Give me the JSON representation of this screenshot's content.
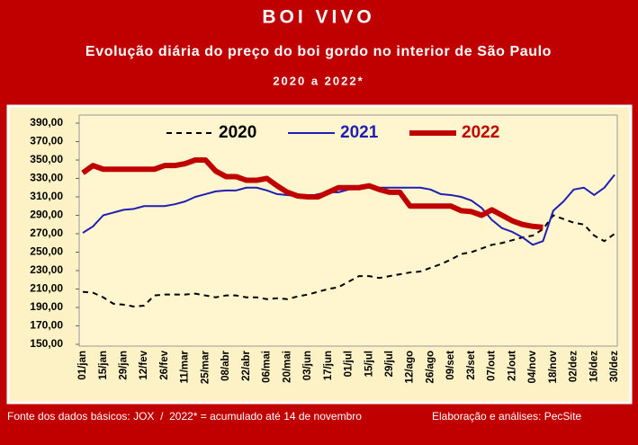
{
  "chart_data": {
    "type": "line",
    "title": "BOI VIVO",
    "subtitle": "Evolução diária do preço do boi gordo no interior de São Paulo",
    "period": "2020 a 2022*",
    "source": "Fonte dos dados básicos: JOX  /  2022* = acumulado até 14 de novembro",
    "credit": "Elaboração e análises: PecSite",
    "categories": [
      "01/jan",
      null,
      "15/jan",
      null,
      "29/jan",
      null,
      "12/fev",
      null,
      "26/fev",
      null,
      "11/mar",
      null,
      "25/mar",
      null,
      "08/abr",
      null,
      "22/abr",
      null,
      "06/mai",
      null,
      "20/mai",
      null,
      "03/jun",
      null,
      "17/jun",
      null,
      "01/jul",
      null,
      "15/jul",
      null,
      "29/jul",
      null,
      "12/ago",
      null,
      "26/ago",
      null,
      "09/set",
      null,
      "23/set",
      null,
      "07/out",
      null,
      "21/out",
      null,
      "04/nov",
      null,
      "18/nov",
      null,
      "02/dez",
      null,
      "16/dez",
      null,
      "30/dez"
    ],
    "ylim": [
      150,
      390
    ],
    "yticks": [
      {
        "value": 150,
        "label": "150,00"
      },
      {
        "value": 170,
        "label": "170,00"
      },
      {
        "value": 190,
        "label": "190,00"
      },
      {
        "value": 210,
        "label": "210,00"
      },
      {
        "value": 230,
        "label": "230,00"
      },
      {
        "value": 250,
        "label": "250,00"
      },
      {
        "value": 270,
        "label": "270,00"
      },
      {
        "value": 290,
        "label": "290,00"
      },
      {
        "value": 310,
        "label": "310,00"
      },
      {
        "value": 330,
        "label": "330,00"
      },
      {
        "value": 350,
        "label": "350,00"
      },
      {
        "value": 370,
        "label": "370,00"
      },
      {
        "value": 390,
        "label": "390,00"
      }
    ],
    "grid": false,
    "legend": "top",
    "series": [
      {
        "name": "2020",
        "color": "#000000",
        "line_style": "dashed",
        "line_width": 2,
        "values": [
          207,
          206,
          201,
          194,
          193,
          191,
          192,
          203,
          204,
          204,
          204,
          205,
          203,
          201,
          203,
          203,
          201,
          201,
          199,
          200,
          199,
          202,
          204,
          207,
          210,
          212,
          218,
          224,
          224,
          222,
          224,
          226,
          228,
          229,
          233,
          237,
          242,
          248,
          250,
          254,
          258,
          260,
          263,
          266,
          268,
          275,
          290,
          286,
          282,
          280,
          268,
          262,
          270
        ]
      },
      {
        "name": "2021",
        "color": "#1f1fb4",
        "line_style": "solid",
        "line_width": 2,
        "values": [
          271,
          278,
          290,
          293,
          296,
          297,
          300,
          300,
          300,
          302,
          305,
          310,
          313,
          316,
          317,
          317,
          320,
          320,
          317,
          313,
          312,
          311,
          310,
          313,
          315,
          315,
          318,
          320,
          320,
          320,
          320,
          320,
          320,
          320,
          318,
          313,
          312,
          310,
          306,
          298,
          285,
          276,
          272,
          266,
          258,
          262,
          295,
          305,
          318,
          320,
          312,
          320,
          334
        ]
      },
      {
        "name": "2022",
        "color": "#c00000",
        "line_style": "solid",
        "line_width": 6,
        "values": [
          336,
          344,
          340,
          340,
          340,
          340,
          340,
          340,
          344,
          344,
          346,
          350,
          350,
          338,
          332,
          332,
          328,
          328,
          330,
          322,
          315,
          311,
          310,
          310,
          315,
          320,
          320,
          320,
          322,
          318,
          315,
          315,
          300,
          300,
          300,
          300,
          300,
          295,
          294,
          290,
          296,
          290,
          284,
          280,
          278,
          277,
          null,
          null,
          null,
          null,
          null,
          null,
          null
        ]
      }
    ]
  }
}
